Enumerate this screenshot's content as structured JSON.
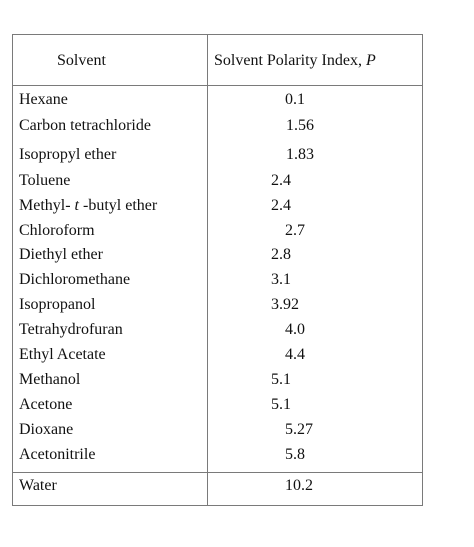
{
  "table": {
    "headers": {
      "solvent": "Solvent",
      "polarity_prefix": "Solvent Polarity Index, ",
      "polarity_symbol": "P"
    },
    "rows": [
      {
        "name": "Hexane",
        "value": "0.1"
      },
      {
        "name": "Carbon tetrachloride",
        "value": "1.56"
      },
      {
        "name": "Isopropyl ether",
        "value": "1.83"
      },
      {
        "name": "Toluene",
        "value": "2.4"
      },
      {
        "name_prefix": "Methyl- ",
        "name_italic": "t",
        "name_suffix": " -butyl ether",
        "value": "2.4"
      },
      {
        "name": "Chloroform",
        "value": "2.7"
      },
      {
        "name": "Diethyl ether",
        "value": "2.8"
      },
      {
        "name": "Dichloromethane",
        "value": "3.1"
      },
      {
        "name": "Isopropanol",
        "value": "3.92"
      },
      {
        "name": "Tetrahydrofuran",
        "value": "4.0"
      },
      {
        "name": "Ethyl Acetate",
        "value": "4.4"
      },
      {
        "name": "Methanol",
        "value": "5.1"
      },
      {
        "name": "Acetone",
        "value": "5.1"
      },
      {
        "name": "Dioxane",
        "value": "5.27"
      },
      {
        "name": "Acetonitrile",
        "value": "5.8"
      },
      {
        "name": "Water",
        "value": "10.2"
      }
    ]
  }
}
